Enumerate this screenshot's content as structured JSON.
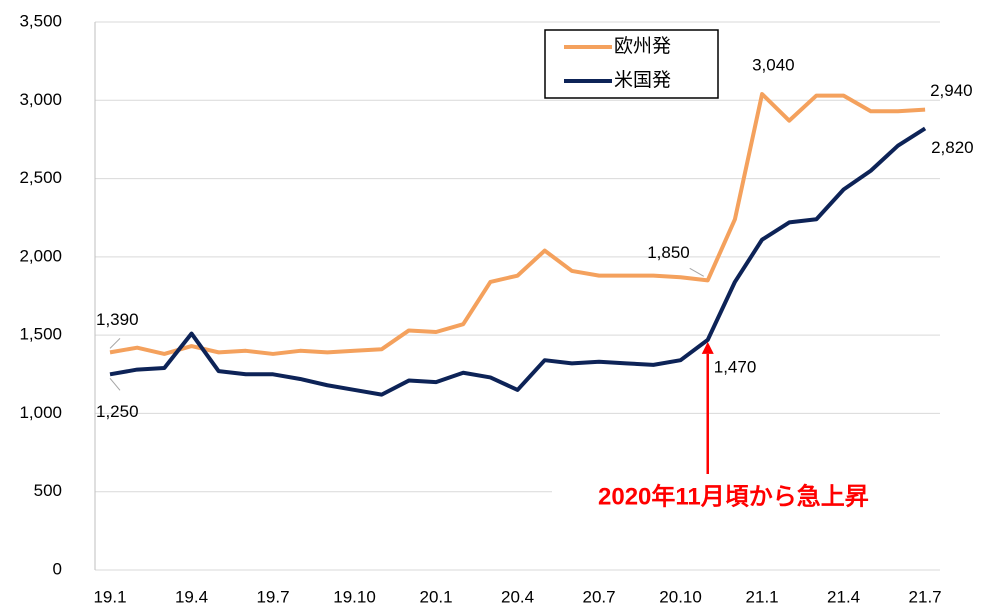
{
  "chart_data": {
    "type": "line",
    "categories": [
      "19.1",
      null,
      null,
      "19.4",
      null,
      null,
      "19.7",
      null,
      null,
      "19.10",
      null,
      null,
      "20.1",
      null,
      null,
      "20.4",
      null,
      null,
      "20.7",
      null,
      null,
      "20.10",
      null,
      null,
      "21.1",
      null,
      null,
      "21.4",
      null,
      null,
      "21.7"
    ],
    "series": [
      {
        "name": "欧州発",
        "color": "#f4a15d",
        "values": [
          1390,
          1420,
          1380,
          1430,
          1390,
          1400,
          1380,
          1400,
          1390,
          1400,
          1410,
          1530,
          1520,
          1570,
          1840,
          1880,
          2040,
          1910,
          1880,
          1880,
          1880,
          1870,
          1850,
          2240,
          3040,
          2870,
          3030,
          3030,
          2930,
          2930,
          2940
        ],
        "value_labels": [
          "1,390",
          null,
          null,
          null,
          null,
          null,
          null,
          null,
          null,
          null,
          null,
          null,
          null,
          null,
          null,
          null,
          null,
          null,
          null,
          null,
          null,
          null,
          "1,850",
          null,
          "3,040",
          null,
          null,
          null,
          null,
          null,
          "2,940"
        ]
      },
      {
        "name": "米国発",
        "color": "#0d2357",
        "values": [
          1250,
          1280,
          1290,
          1510,
          1270,
          1250,
          1250,
          1220,
          1180,
          1150,
          1120,
          1210,
          1200,
          1260,
          1230,
          1150,
          1340,
          1320,
          1330,
          1320,
          1310,
          1340,
          1470,
          1840,
          2110,
          2220,
          2240,
          2430,
          2550,
          2710,
          2820
        ],
        "value_labels": [
          "1,250",
          null,
          null,
          null,
          null,
          null,
          null,
          null,
          null,
          null,
          null,
          null,
          null,
          null,
          null,
          null,
          null,
          null,
          null,
          null,
          null,
          null,
          "1,470",
          null,
          null,
          null,
          null,
          null,
          null,
          null,
          "2,820"
        ]
      }
    ],
    "ylim": [
      0,
      3500
    ],
    "yticks": [
      0,
      500,
      {
        "value": 1000,
        "label": "1,000"
      },
      {
        "value": 1500,
        "label": "1,500"
      },
      {
        "value": 2000,
        "label": "2,000"
      },
      {
        "value": 2500,
        "label": "2,500"
      },
      {
        "value": 3000,
        "label": "3,000"
      },
      {
        "value": 3500,
        "label": "3,500"
      }
    ],
    "grid": true,
    "legend": "top-right",
    "annotation": "2020年11月頃から急上昇",
    "annotation_color": "#ff0000"
  }
}
